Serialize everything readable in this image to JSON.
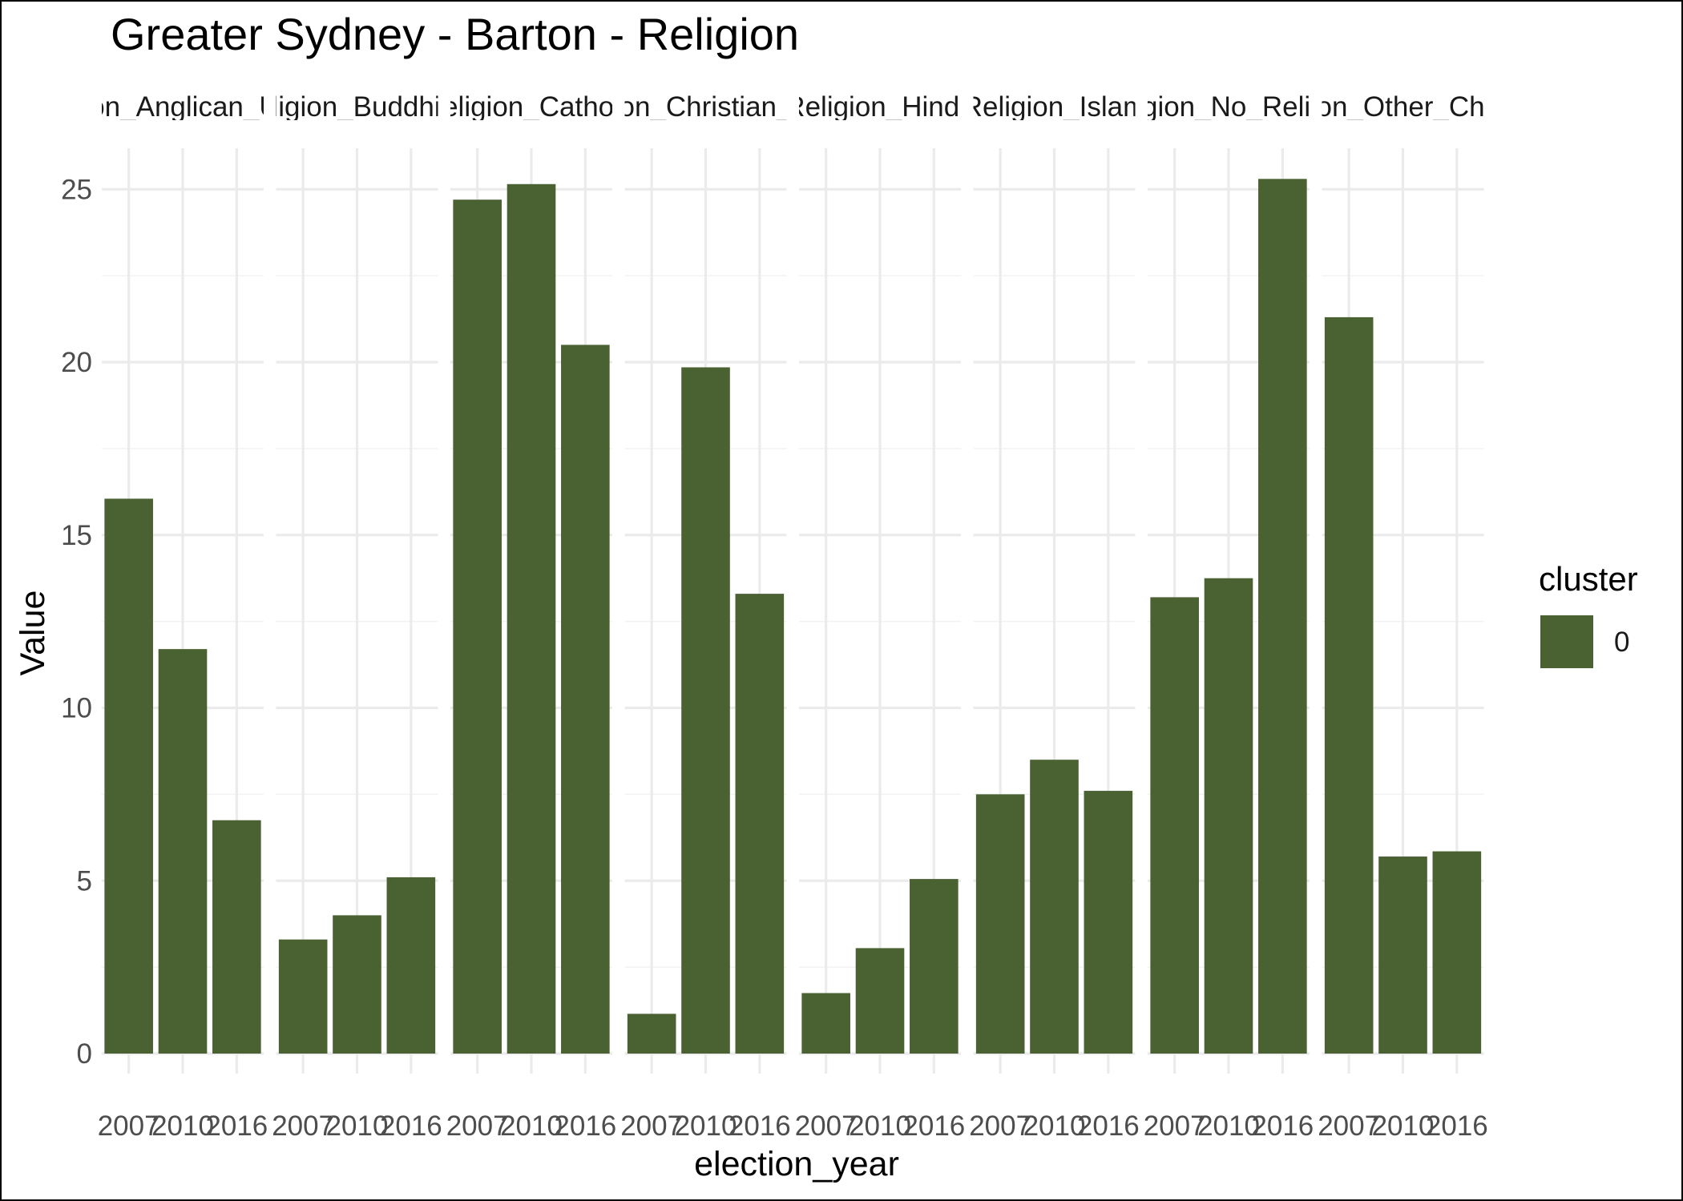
{
  "chart_data": {
    "type": "bar",
    "title": "Greater Sydney - Barton - Religion",
    "xlabel": "election_year",
    "ylabel": "Value",
    "ylim": [
      0,
      26.5
    ],
    "y_ticks": [
      "0",
      "5",
      "10",
      "15",
      "20",
      "25"
    ],
    "grid": true,
    "bar_color": "#4a6131",
    "facets": [
      "Religion_Anglican_Uniting",
      "Religion_Buddhism",
      "Religion_Catholic",
      "Religion_Christian_Other",
      "Religion_Hindu",
      "Religion_Islam",
      "Religion_No_Religion",
      "Religion_Other_Christian"
    ],
    "categories": [
      "2007",
      "2010",
      "2016"
    ],
    "series": [
      {
        "facet": "Religion_Anglican_Uniting",
        "values": [
          16.05,
          11.7,
          6.75
        ]
      },
      {
        "facet": "Religion_Buddhism",
        "values": [
          3.3,
          4.0,
          5.1
        ]
      },
      {
        "facet": "Religion_Catholic",
        "values": [
          24.7,
          25.15,
          20.5
        ]
      },
      {
        "facet": "Religion_Christian_Other",
        "values": [
          1.15,
          19.85,
          13.3
        ]
      },
      {
        "facet": "Religion_Hindu",
        "values": [
          1.75,
          3.05,
          5.05
        ]
      },
      {
        "facet": "Religion_Islam",
        "values": [
          7.5,
          8.5,
          7.6
        ]
      },
      {
        "facet": "Religion_No_Religion",
        "values": [
          13.2,
          13.75,
          25.3
        ]
      },
      {
        "facet": "Religion_Other_Christian",
        "values": [
          21.3,
          5.7,
          5.85
        ]
      }
    ],
    "legend": {
      "title": "cluster",
      "position": "right",
      "entries": [
        {
          "label": "0",
          "color": "#4a6131"
        }
      ]
    }
  }
}
